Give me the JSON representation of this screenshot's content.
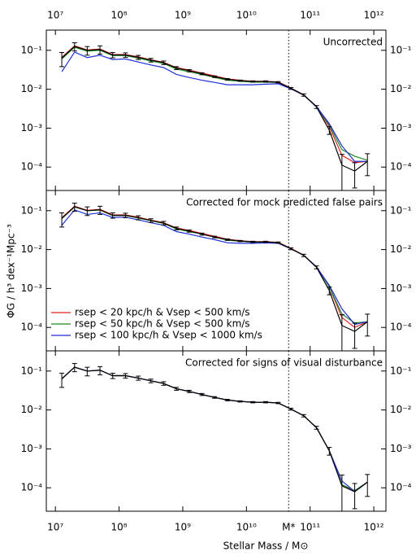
{
  "chart_data": {
    "type": "line",
    "log_x": true,
    "log_y": true,
    "x_label": "Stellar Mass / M⊙",
    "y_label": "ΦG / h³ dex⁻¹Mpc⁻³",
    "xlim": [
      7200000,
      1550000000000
    ],
    "xticks": [
      {
        "value": 10000000,
        "label": "10⁷"
      },
      {
        "value": 100000000,
        "label": "10⁸"
      },
      {
        "value": 1000000000,
        "label": "10⁹"
      },
      {
        "value": 10000000000,
        "label": "10¹⁰"
      },
      {
        "value": 100000000000,
        "label": "10¹¹"
      },
      {
        "value": 1000000000000,
        "label": "10¹²"
      }
    ],
    "ylim": [
      2.5e-05,
      0.33
    ],
    "yticks": [
      {
        "value": 0.1,
        "label": "10⁻¹"
      },
      {
        "value": 0.01,
        "label": "10⁻²"
      },
      {
        "value": 0.001,
        "label": "10⁻³"
      },
      {
        "value": 0.0001,
        "label": "10⁻⁴"
      }
    ],
    "mstar": {
      "value": 46000000000,
      "label": "M*"
    },
    "x": [
      12600000,
      20000000,
      31600000,
      50100000,
      79400000,
      126000000,
      200000000,
      316000000,
      501000000,
      794000000,
      1260000000,
      2000000000,
      3160000000,
      5010000000,
      7940000000,
      12600000000,
      20000000000,
      31600000000,
      50100000000,
      79400000000,
      126000000000,
      200000000000,
      316000000000,
      501000000000,
      794000000000
    ],
    "legend": [
      {
        "name": "rsep < 20 kpc/h & Vsep < 500 km/s",
        "color": "#e8231e"
      },
      {
        "name": "rsep < 50 kpc/h & Vsep < 500 km/s",
        "color": "#1e8a1e"
      },
      {
        "name": "rsep < 100 kpc/h & Vsep < 1000 km/s",
        "color": "#1f2ed8"
      }
    ],
    "panels": [
      {
        "annotation": "Uncorrected",
        "series": [
          {
            "color": "#e8231e",
            "values": [
              0.066,
              0.13,
              0.102,
              0.108,
              0.078,
              0.078,
              0.068,
              0.057,
              0.049,
              0.036,
              0.031,
              0.026,
              0.022,
              0.0185,
              0.017,
              0.016,
              0.016,
              0.0153,
              0.0107,
              0.0072,
              0.0036,
              0.0011,
              0.0002,
              0.00013,
              0.00014
            ]
          },
          {
            "color": "#1e8a1e",
            "values": [
              0.06,
              0.12,
              0.095,
              0.1,
              0.073,
              0.073,
              0.063,
              0.053,
              0.046,
              0.033,
              0.028,
              0.024,
              0.02,
              0.017,
              0.016,
              0.0152,
              0.0152,
              0.0148,
              0.0105,
              0.0071,
              0.0036,
              0.0012,
              0.00028,
              0.00019,
              0.00015
            ]
          },
          {
            "color": "#1f2ed8",
            "values": [
              0.028,
              0.09,
              0.065,
              0.075,
              0.058,
              0.06,
              0.05,
              0.042,
              0.036,
              0.024,
              0.02,
              0.017,
              0.015,
              0.013,
              0.013,
              0.013,
              0.0135,
              0.0138,
              0.0102,
              0.007,
              0.0036,
              0.0013,
              0.00035,
              0.00014,
              0.00014
            ]
          },
          {
            "color": "#000000",
            "values": [
              0.063,
              0.126,
              0.1,
              0.105,
              0.076,
              0.076,
              0.066,
              0.056,
              0.048,
              0.035,
              0.03,
              0.025,
              0.021,
              0.018,
              0.0166,
              0.0158,
              0.0158,
              0.0151,
              0.0105,
              0.0071,
              0.0035,
              0.00089,
              0.000112,
              7.9e-05,
              0.00014
            ],
            "errors": [
              0.025,
              0.03,
              0.025,
              0.025,
              0.012,
              0.01,
              0.008,
              0.006,
              0.005,
              0.003,
              0.002,
              0.0015,
              0.001,
              0.0008,
              0.0006,
              0.0006,
              0.0006,
              0.0006,
              0.0006,
              0.0005,
              0.0003,
              0.0002,
              0.0001,
              5e-05,
              8e-05
            ]
          }
        ]
      },
      {
        "annotation": "Corrected for mock predicted false pairs",
        "series": [
          {
            "color": "#e8231e",
            "values": [
              0.066,
              0.13,
              0.102,
              0.108,
              0.078,
              0.078,
              0.068,
              0.057,
              0.049,
              0.036,
              0.031,
              0.026,
              0.022,
              0.0185,
              0.017,
              0.016,
              0.016,
              0.0153,
              0.0107,
              0.0072,
              0.0036,
              0.0011,
              0.00018,
              0.0001,
              0.00014
            ]
          },
          {
            "color": "#1e8a1e",
            "values": [
              0.063,
              0.125,
              0.1,
              0.104,
              0.075,
              0.075,
              0.065,
              0.055,
              0.047,
              0.034,
              0.029,
              0.025,
              0.021,
              0.0175,
              0.0163,
              0.0155,
              0.0155,
              0.015,
              0.0105,
              0.0071,
              0.0036,
              0.0011,
              0.00022,
              0.00013,
              0.00014
            ]
          },
          {
            "color": "#1f2ed8",
            "values": [
              0.042,
              0.105,
              0.08,
              0.088,
              0.067,
              0.068,
              0.058,
              0.049,
              0.042,
              0.029,
              0.025,
              0.021,
              0.018,
              0.015,
              0.0145,
              0.0145,
              0.0148,
              0.0145,
              0.0104,
              0.0071,
              0.0036,
              0.0012,
              0.0003,
              0.00012,
              0.00014
            ]
          },
          {
            "color": "#000000",
            "values": [
              0.063,
              0.126,
              0.1,
              0.105,
              0.076,
              0.076,
              0.066,
              0.056,
              0.048,
              0.035,
              0.03,
              0.025,
              0.021,
              0.018,
              0.0166,
              0.0158,
              0.0158,
              0.0151,
              0.0105,
              0.0071,
              0.0035,
              0.00089,
              0.000112,
              7.9e-05,
              0.00014
            ],
            "errors": [
              0.025,
              0.03,
              0.025,
              0.025,
              0.012,
              0.01,
              0.008,
              0.006,
              0.005,
              0.003,
              0.002,
              0.0015,
              0.001,
              0.0008,
              0.0006,
              0.0006,
              0.0006,
              0.0006,
              0.0006,
              0.0005,
              0.0003,
              0.0002,
              0.0001,
              5e-05,
              8e-05
            ]
          }
        ]
      },
      {
        "annotation": "Corrected for signs of visual disturbance",
        "series": [
          {
            "color": "#e8231e",
            "values": [
              0.063,
              0.126,
              0.1,
              0.105,
              0.076,
              0.076,
              0.066,
              0.056,
              0.048,
              0.035,
              0.03,
              0.025,
              0.021,
              0.018,
              0.0166,
              0.0158,
              0.0158,
              0.0151,
              0.0105,
              0.0071,
              0.0035,
              0.0009,
              0.000118,
              8.2e-05,
              0.00014
            ]
          },
          {
            "color": "#1e8a1e",
            "values": [
              0.063,
              0.126,
              0.1,
              0.105,
              0.076,
              0.076,
              0.066,
              0.056,
              0.048,
              0.035,
              0.03,
              0.025,
              0.021,
              0.018,
              0.0166,
              0.0158,
              0.0158,
              0.0151,
              0.0105,
              0.0071,
              0.0035,
              0.0009,
              0.00012,
              8.5e-05,
              0.00014
            ]
          },
          {
            "color": "#1f2ed8",
            "values": [
              0.063,
              0.126,
              0.1,
              0.105,
              0.076,
              0.076,
              0.066,
              0.056,
              0.048,
              0.035,
              0.03,
              0.025,
              0.021,
              0.018,
              0.0166,
              0.0158,
              0.0158,
              0.0151,
              0.0105,
              0.0071,
              0.0035,
              0.0009,
              0.00015,
              8e-05,
              0.00014
            ]
          },
          {
            "color": "#000000",
            "values": [
              0.063,
              0.126,
              0.1,
              0.105,
              0.076,
              0.076,
              0.066,
              0.056,
              0.048,
              0.035,
              0.03,
              0.025,
              0.021,
              0.018,
              0.0166,
              0.0158,
              0.0158,
              0.0151,
              0.0105,
              0.0071,
              0.0035,
              0.00089,
              0.000112,
              7.9e-05,
              0.00014
            ],
            "errors": [
              0.025,
              0.03,
              0.025,
              0.025,
              0.012,
              0.01,
              0.008,
              0.006,
              0.005,
              0.003,
              0.002,
              0.0015,
              0.001,
              0.0008,
              0.0006,
              0.0006,
              0.0006,
              0.0006,
              0.0006,
              0.0005,
              0.0003,
              0.0002,
              0.0001,
              5e-05,
              8e-05
            ]
          }
        ]
      }
    ]
  }
}
